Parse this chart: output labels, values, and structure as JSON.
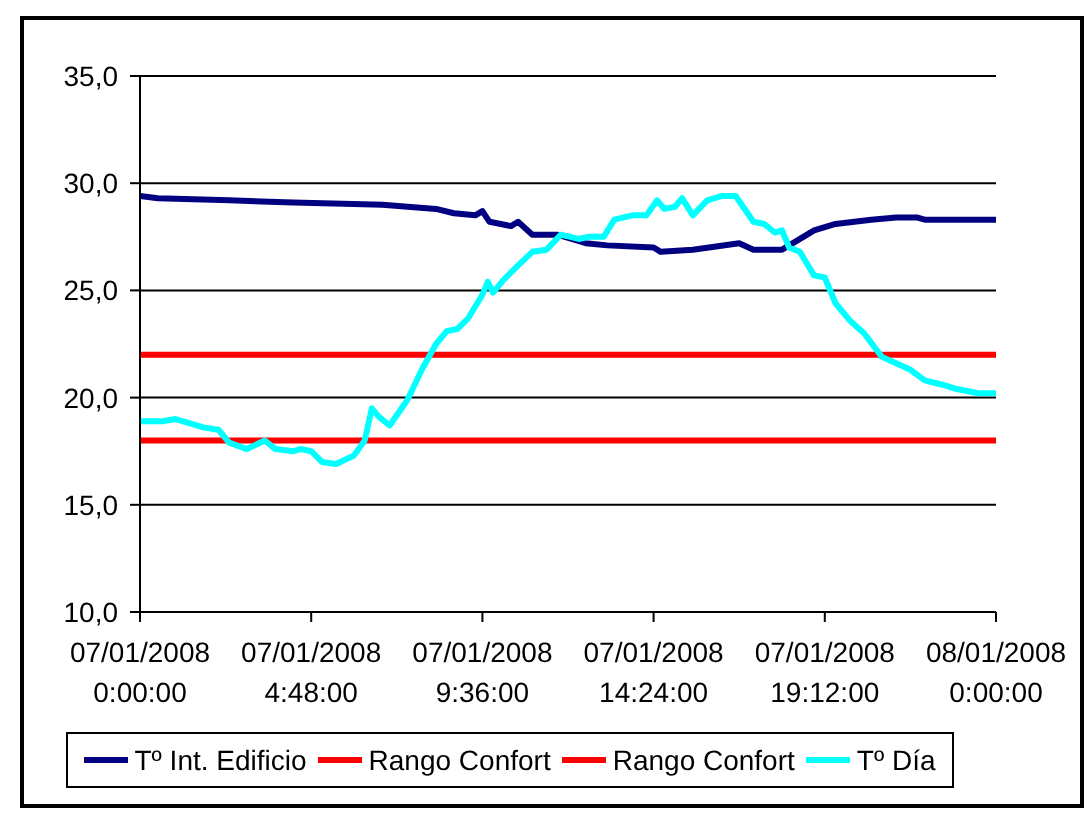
{
  "chart_data": {
    "type": "line",
    "ylim": [
      10,
      35
    ],
    "yticks": [
      {
        "value": 10,
        "label": "10,0"
      },
      {
        "value": 15,
        "label": "15,0"
      },
      {
        "value": 20,
        "label": "20,0"
      },
      {
        "value": 25,
        "label": "25,0"
      },
      {
        "value": 30,
        "label": "30,0"
      },
      {
        "value": 35,
        "label": "35,0"
      }
    ],
    "xlim": [
      "2008-01-07T00:00",
      "2008-01-08T00:00"
    ],
    "xticks": [
      {
        "value": "2008-01-07T00:00",
        "label": "07/01/2008\n0:00:00"
      },
      {
        "value": "2008-01-07T04:48",
        "label": "07/01/2008\n4:48:00"
      },
      {
        "value": "2008-01-07T09:36",
        "label": "07/01/2008\n9:36:00"
      },
      {
        "value": "2008-01-07T14:24",
        "label": "07/01/2008\n14:24:00"
      },
      {
        "value": "2008-01-07T19:12",
        "label": "07/01/2008\n19:12:00"
      },
      {
        "value": "2008-01-08T00:00",
        "label": "08/01/2008\n0:00:00"
      }
    ],
    "grid": "y",
    "legend": "bottom",
    "marker": "none",
    "line_style": "solid",
    "series": [
      {
        "name": "Tº Int. Edificio",
        "color": "#000080",
        "x": [
          "2008-01-07T00:00",
          "2008-01-07T00:30",
          "2008-01-07T02:30",
          "2008-01-07T04:18",
          "2008-01-07T06:48",
          "2008-01-07T08:18",
          "2008-01-07T08:48",
          "2008-01-07T09:24",
          "2008-01-07T09:36",
          "2008-01-07T09:48",
          "2008-01-07T10:24",
          "2008-01-07T10:36",
          "2008-01-07T11:00",
          "2008-01-07T11:42",
          "2008-01-07T12:30",
          "2008-01-07T13:06",
          "2008-01-07T14:24",
          "2008-01-07T14:36",
          "2008-01-07T15:30",
          "2008-01-07T16:48",
          "2008-01-07T17:12",
          "2008-01-07T18:00",
          "2008-01-07T18:24",
          "2008-01-07T18:54",
          "2008-01-07T19:30",
          "2008-01-07T20:30",
          "2008-01-07T21:12",
          "2008-01-07T21:48",
          "2008-01-07T22:00",
          "2008-01-08T00:00"
        ],
        "values": [
          29.4,
          29.3,
          29.2,
          29.1,
          29.0,
          28.8,
          28.6,
          28.5,
          28.7,
          28.2,
          28,
          28.2,
          27.6,
          27.6,
          27.2,
          27.1,
          27,
          26.8,
          26.9,
          27.2,
          26.9,
          26.9,
          27.3,
          27.8,
          28.1,
          28.3,
          28.4,
          28.4,
          28.3,
          28.3
        ]
      },
      {
        "name": "Rango Confort",
        "color": "#ff0000",
        "x": [
          "2008-01-07T00:00",
          "2008-01-08T00:00"
        ],
        "values": [
          22,
          22
        ]
      },
      {
        "name": "Rango Confort",
        "color": "#ff0000",
        "x": [
          "2008-01-07T00:00",
          "2008-01-08T00:00"
        ],
        "values": [
          18,
          18
        ]
      },
      {
        "name": "Tº Día",
        "color": "#00ffff",
        "x": [
          "2008-01-07T00:00",
          "2008-01-07T00:38",
          "2008-01-07T01:00",
          "2008-01-07T01:24",
          "2008-01-07T01:48",
          "2008-01-07T02:12",
          "2008-01-07T02:30",
          "2008-01-07T03:00",
          "2008-01-07T03:30",
          "2008-01-07T03:48",
          "2008-01-07T04:18",
          "2008-01-07T04:30",
          "2008-01-07T04:48",
          "2008-01-07T05:06",
          "2008-01-07T05:30",
          "2008-01-07T06:00",
          "2008-01-07T06:18",
          "2008-01-07T06:30",
          "2008-01-07T06:42",
          "2008-01-07T07:00",
          "2008-01-07T07:30",
          "2008-01-07T07:54",
          "2008-01-07T08:18",
          "2008-01-07T08:36",
          "2008-01-07T08:54",
          "2008-01-07T09:12",
          "2008-01-07T09:36",
          "2008-01-07T09:45",
          "2008-01-07T09:54",
          "2008-01-07T10:12",
          "2008-01-07T10:30",
          "2008-01-07T11:00",
          "2008-01-07T11:24",
          "2008-01-07T11:48",
          "2008-01-07T12:18",
          "2008-01-07T12:36",
          "2008-01-07T13:00",
          "2008-01-07T13:18",
          "2008-01-07T13:48",
          "2008-01-07T14:12",
          "2008-01-07T14:30",
          "2008-01-07T14:42",
          "2008-01-07T15:00",
          "2008-01-07T15:12",
          "2008-01-07T15:30",
          "2008-01-07T15:54",
          "2008-01-07T16:18",
          "2008-01-07T16:42",
          "2008-01-07T17:12",
          "2008-01-07T17:30",
          "2008-01-07T17:48",
          "2008-01-07T18:00",
          "2008-01-07T18:12",
          "2008-01-07T18:30",
          "2008-01-07T18:54",
          "2008-01-07T19:12",
          "2008-01-07T19:30",
          "2008-01-07T19:54",
          "2008-01-07T20:18",
          "2008-01-07T20:48",
          "2008-01-07T21:12",
          "2008-01-07T21:36",
          "2008-01-07T22:00",
          "2008-01-07T22:30",
          "2008-01-07T22:54",
          "2008-01-07T23:30",
          "2008-01-08T00:00"
        ],
        "values": [
          18.9,
          18.9,
          19,
          18.8,
          18.6,
          18.5,
          17.9,
          17.6,
          18,
          17.6,
          17.5,
          17.6,
          17.5,
          17,
          16.9,
          17.3,
          18,
          19.5,
          19.1,
          18.7,
          19.9,
          21.3,
          22.5,
          23.1,
          23.2,
          23.7,
          24.8,
          25.4,
          24.9,
          25.5,
          26,
          26.8,
          26.9,
          27.6,
          27.4,
          27.5,
          27.5,
          28.3,
          28.5,
          28.5,
          29.2,
          28.8,
          28.9,
          29.3,
          28.5,
          29.2,
          29.4,
          29.4,
          28.2,
          28.1,
          27.7,
          27.8,
          27,
          26.8,
          25.7,
          25.6,
          24.4,
          23.6,
          23,
          21.9,
          21.6,
          21.3,
          20.8,
          20.6,
          20.4,
          20.2,
          20.2
        ]
      }
    ]
  }
}
